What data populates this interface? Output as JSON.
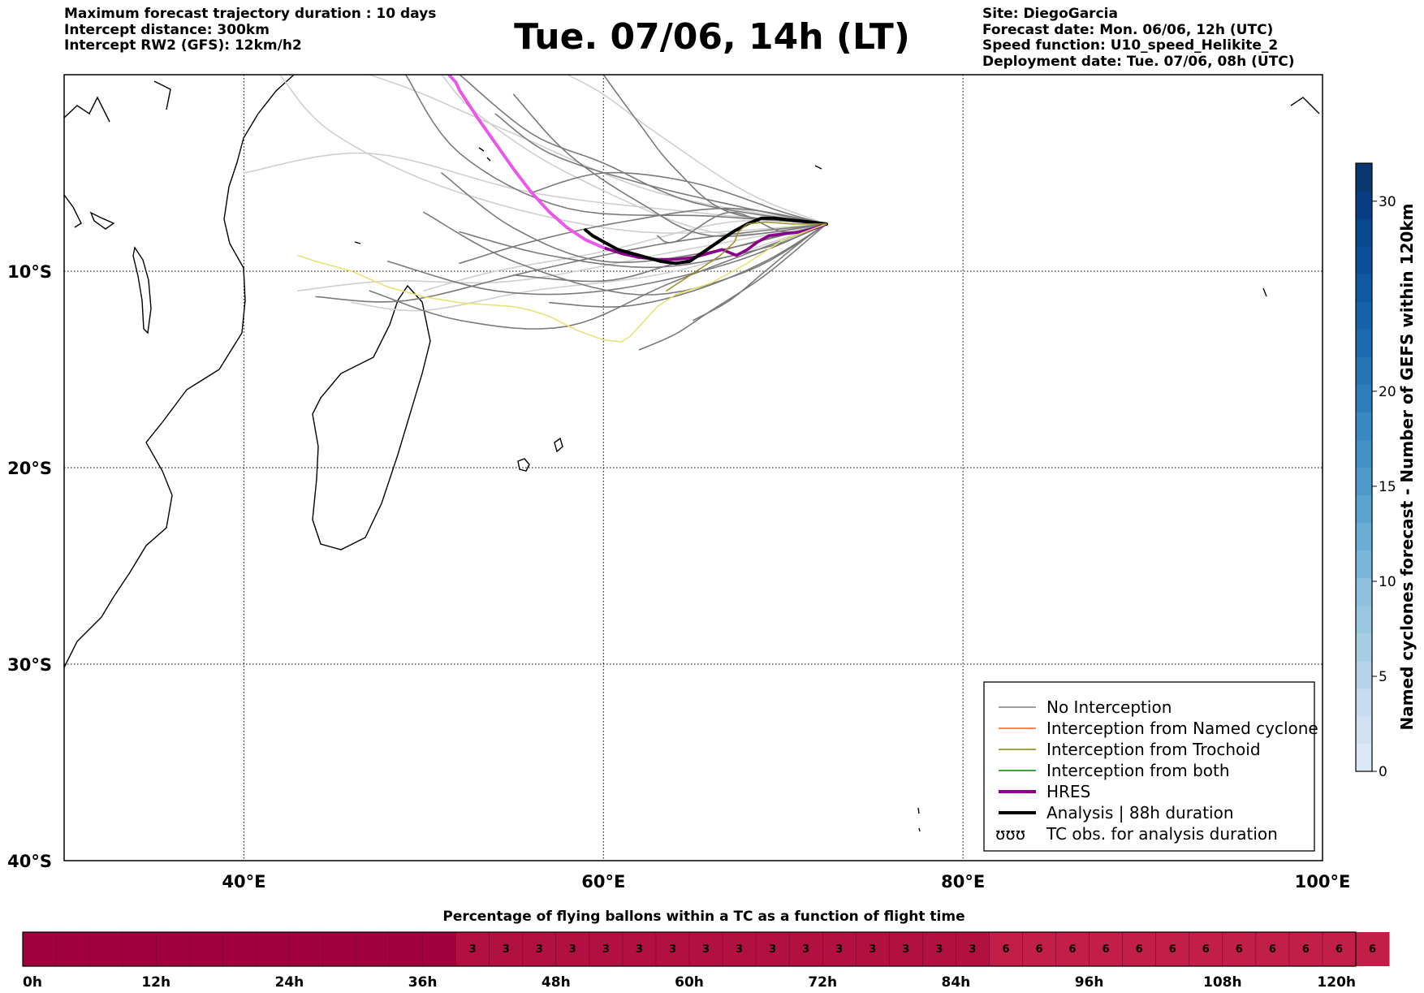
{
  "header": {
    "left": [
      "Maximum forecast trajectory duration : 10 days",
      "Intercept distance: 300km",
      "Intercept RW2 (GFS):  12km/h2"
    ],
    "title": "Tue. 07/06, 14h (LT)",
    "right": [
      "Site: DiegoGarcia",
      "Forecast date: Mon. 06/06, 12h (UTC)",
      "Speed function: U10_speed_Helikite_2",
      "Deployment date: Tue. 07/06, 08h (UTC)"
    ]
  },
  "chart_data": [
    {
      "type": "line",
      "plot": "map",
      "xlabel": "",
      "ylabel": "",
      "xlim": [
        30,
        100
      ],
      "ylim": [
        -40,
        0
      ],
      "x_ticks": [
        40,
        60,
        80,
        100
      ],
      "x_tick_labels": [
        "40°E",
        "60°E",
        "80°E",
        "100°E"
      ],
      "y_ticks": [
        -10,
        -20,
        -30,
        -40
      ],
      "y_tick_labels": [
        "10°S",
        "20°S",
        "30°S",
        "40°S"
      ],
      "grid": true,
      "legend_position": "bottom-right",
      "legend": [
        {
          "label": "No Interception",
          "color": "#808080",
          "style": "thin"
        },
        {
          "label": "Interception from Named cyclone",
          "color": "#ff5a1f",
          "style": "thin"
        },
        {
          "label": "Interception from Trochoid",
          "color": "#808000",
          "style": "thin"
        },
        {
          "label": "Interception from both",
          "color": "#008000",
          "style": "thin"
        },
        {
          "label": "HRES",
          "color": "#8b008b",
          "style": "thick"
        },
        {
          "label": "Analysis | 88h duration",
          "color": "#000000",
          "style": "thick"
        },
        {
          "label": "TC obs. for analysis duration",
          "color": "#000000",
          "style": "symbol",
          "symbol": "ʊʊʊ"
        }
      ],
      "series": [
        {
          "name": "HRES",
          "color": "#8b008b",
          "x": [
            72.4,
            71.8,
            71.0,
            70.0,
            69.2,
            68.6,
            68.0,
            67.4,
            66.6,
            65.8,
            65.0,
            64.0,
            63.0,
            62.0,
            61.0,
            60.0,
            59.0,
            58.0,
            57.0,
            56.0,
            55.0,
            54.0,
            53.0,
            52.5,
            52.0,
            51.8,
            51.6,
            51.4
          ],
          "y": [
            -7.6,
            -7.8,
            -8.0,
            -8.1,
            -8.2,
            -8.5,
            -8.9,
            -9.2,
            -8.9,
            -9.1,
            -9.3,
            -9.4,
            -9.4,
            -9.3,
            -9.1,
            -8.8,
            -8.4,
            -7.8,
            -7.0,
            -6.0,
            -4.8,
            -3.5,
            -2.2,
            -1.5,
            -0.8,
            -0.4,
            -0.2,
            0.0
          ]
        },
        {
          "name": "HRES-late",
          "color": "#ee55ee",
          "x": [
            60.0,
            59.0,
            58.0,
            57.0,
            56.0,
            55.0,
            54.0,
            53.0,
            52.5,
            52.0,
            51.8,
            51.6,
            51.4
          ],
          "y": [
            -8.8,
            -8.4,
            -7.8,
            -7.0,
            -6.0,
            -4.8,
            -3.5,
            -2.2,
            -1.5,
            -0.8,
            -0.4,
            -0.2,
            0.0
          ]
        },
        {
          "name": "Analysis",
          "color": "#000000",
          "x": [
            72.4,
            71.5,
            70.5,
            69.5,
            68.8,
            68.0,
            67.2,
            66.4,
            65.6,
            64.8,
            64.0,
            63.2,
            62.4,
            61.6,
            60.8,
            60.0,
            59.4,
            59.0
          ],
          "y": [
            -7.6,
            -7.5,
            -7.4,
            -7.3,
            -7.3,
            -7.6,
            -8.0,
            -8.5,
            -9.0,
            -9.5,
            -9.6,
            -9.5,
            -9.3,
            -9.1,
            -8.9,
            -8.5,
            -8.2,
            -7.9
          ]
        },
        {
          "name": "Trochoid-1",
          "color": "#e8e070",
          "x": [
            72.4,
            70.0,
            68.0,
            66.0,
            64.0,
            63.0,
            62.0,
            61.5,
            61.0,
            60.0,
            58.5,
            57.0,
            56.0,
            55.0,
            52.0,
            50.0,
            48.0,
            46.0,
            44.0,
            43.0
          ],
          "y": [
            -7.6,
            -8.4,
            -9.6,
            -10.6,
            -11.2,
            -11.8,
            -12.8,
            -13.3,
            -13.6,
            -13.5,
            -13.0,
            -12.3,
            -12.0,
            -11.8,
            -11.6,
            -11.3,
            -10.8,
            -10.0,
            -9.5,
            -9.2
          ]
        },
        {
          "name": "Trochoid-2",
          "color": "#9a9020",
          "x": [
            72.4,
            70.5,
            69.0,
            68.0,
            67.5,
            67.3,
            66.5,
            65.5,
            64.5,
            63.5
          ],
          "y": [
            -7.6,
            -7.6,
            -7.5,
            -7.6,
            -8.0,
            -8.5,
            -9.2,
            -9.8,
            -10.4,
            -11.0
          ]
        }
      ]
    },
    {
      "type": "heatmap",
      "plot": "colorbar",
      "ylabel": "Named cyclones forecast - Number of GEFS within 120km",
      "ylim": [
        0,
        32
      ],
      "ticks": [
        0,
        5,
        10,
        15,
        20,
        30
      ],
      "colors": [
        "#dbe9f6",
        "#d0e1f2",
        "#c6dbef",
        "#b6d3e9",
        "#a8cee4",
        "#9ac8e0",
        "#8cc0dd",
        "#7ab7da",
        "#6aadd5",
        "#5ca4d0",
        "#4f9acc",
        "#4391c6",
        "#3888c1",
        "#2f7ebc",
        "#2574b6",
        "#1c6aaf",
        "#1562a9",
        "#0f58a2",
        "#0b4f96",
        "#08488d",
        "#083e81",
        "#08366f"
      ]
    },
    {
      "type": "heatmap",
      "plot": "percentage-bar",
      "title": "Percentage of flying ballons within a TC as a function of flight time",
      "x_tick_labels": [
        "0h",
        "12h",
        "24h",
        "36h",
        "48h",
        "60h",
        "72h",
        "84h",
        "96h",
        "108h",
        "120h"
      ],
      "x_ticks": [
        0,
        12,
        24,
        36,
        48,
        60,
        72,
        84,
        96,
        108,
        120
      ],
      "bin_hours": 3,
      "values": [
        0,
        0,
        0,
        0,
        0,
        0,
        0,
        0,
        0,
        0,
        0,
        0,
        0,
        3,
        3,
        3,
        3,
        3,
        3,
        3,
        3,
        3,
        3,
        3,
        3,
        3,
        3,
        3,
        3,
        6,
        6,
        6,
        6,
        6,
        6,
        6,
        6,
        6,
        6,
        6,
        6
      ],
      "colors": {
        "0": "#a0003c",
        "3": "#b31042",
        "6": "#c21f48"
      }
    }
  ]
}
